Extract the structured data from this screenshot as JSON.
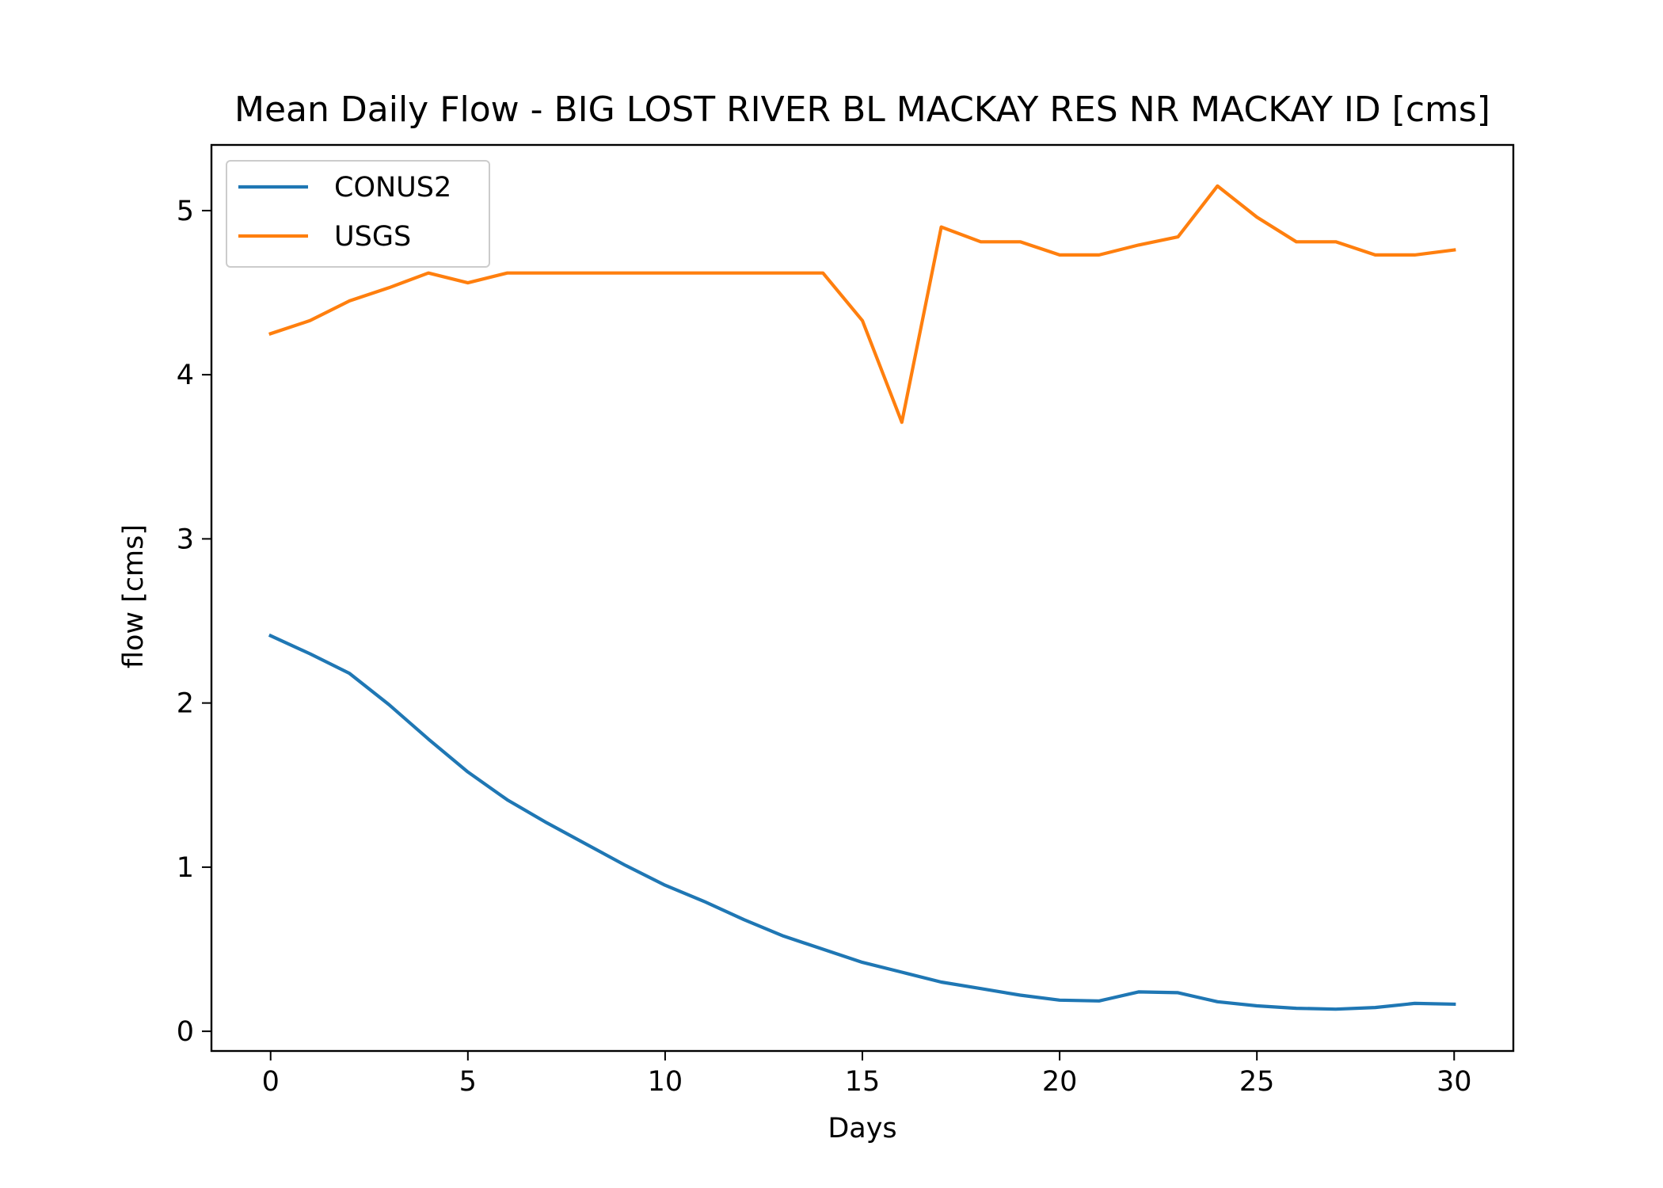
{
  "chart_data": {
    "type": "line",
    "title": "Mean Daily Flow - BIG LOST RIVER BL MACKAY RES NR MACKAY ID [cms]",
    "xlabel": "Days",
    "ylabel": "flow [cms]",
    "xlim": [
      -1.5,
      31.5
    ],
    "ylim": [
      -0.12,
      5.4
    ],
    "xticks": [
      0,
      5,
      10,
      15,
      20,
      25,
      30
    ],
    "xtick_labels": [
      "0",
      "5",
      "10",
      "15",
      "20",
      "25",
      "30"
    ],
    "yticks": [
      0,
      1,
      2,
      3,
      4,
      5
    ],
    "ytick_labels": [
      "0",
      "1",
      "2",
      "3",
      "4",
      "5"
    ],
    "grid": false,
    "legend_position": "top-left",
    "x": [
      0,
      1,
      2,
      3,
      4,
      5,
      6,
      7,
      8,
      9,
      10,
      11,
      12,
      13,
      14,
      15,
      16,
      17,
      18,
      19,
      20,
      21,
      22,
      23,
      24,
      25,
      26,
      27,
      28,
      29,
      30
    ],
    "series": [
      {
        "name": "CONUS2",
        "color": "#1f77b4",
        "values": [
          2.41,
          2.3,
          2.18,
          1.99,
          1.78,
          1.58,
          1.41,
          1.27,
          1.14,
          1.01,
          0.89,
          0.79,
          0.68,
          0.58,
          0.5,
          0.42,
          0.36,
          0.3,
          0.26,
          0.22,
          0.19,
          0.185,
          0.24,
          0.235,
          0.18,
          0.155,
          0.14,
          0.135,
          0.145,
          0.17,
          0.165
        ]
      },
      {
        "name": "USGS",
        "color": "#ff7f0e",
        "values": [
          4.25,
          4.33,
          4.45,
          4.53,
          4.62,
          4.56,
          4.62,
          4.62,
          4.62,
          4.62,
          4.62,
          4.62,
          4.62,
          4.62,
          4.62,
          4.33,
          3.71,
          4.9,
          4.81,
          4.81,
          4.73,
          4.73,
          4.79,
          4.84,
          5.15,
          4.96,
          4.81,
          4.81,
          4.73,
          4.73,
          4.76
        ]
      }
    ]
  }
}
